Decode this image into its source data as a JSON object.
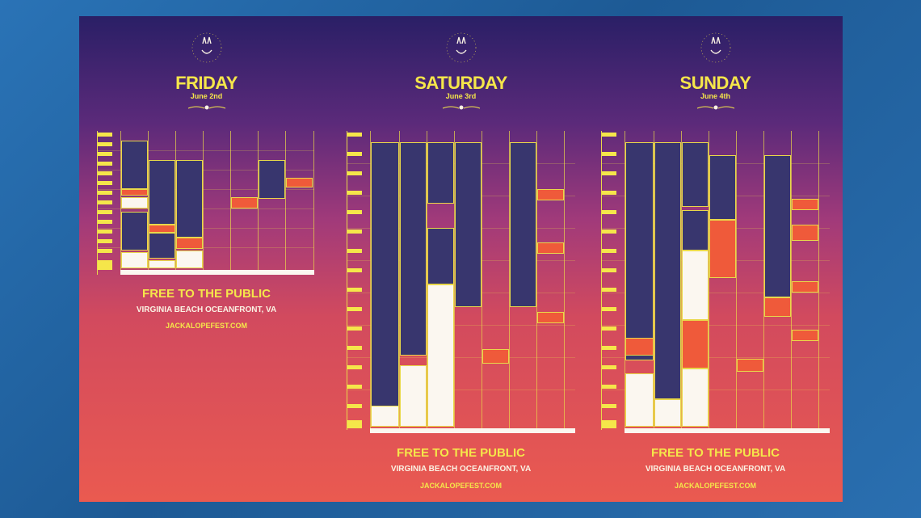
{
  "days": [
    {
      "name": "FRIDAY",
      "date": "June 2nd"
    },
    {
      "name": "SATURDAY",
      "date": "June 3rd"
    },
    {
      "name": "SUNDAY",
      "date": "June 4th"
    }
  ],
  "footer": {
    "free_label": "FREE TO THE PUBLIC",
    "location": "VIRGINIA BEACH OCEANFRONT, VA",
    "url": "JACKALOPEFEST.COM"
  },
  "colors": {
    "yellow": "#f5e64a",
    "navy": "#38366e",
    "orange": "#ef5a3a",
    "white": "#fbf7f0"
  }
}
